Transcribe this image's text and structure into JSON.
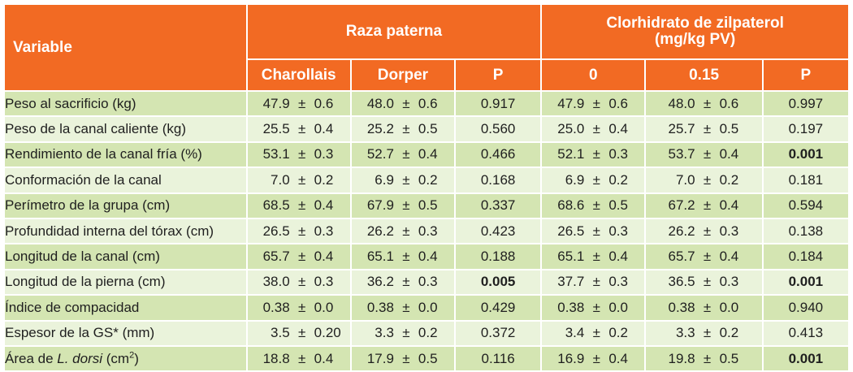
{
  "header": {
    "variable": "Variable",
    "raza_paterna": "Raza paterna",
    "zilpaterol_line1": "Clorhidrato de zilpaterol",
    "zilpaterol_line2": "(mg/kg PV)",
    "cols": [
      "Charollais",
      "Dorper",
      "P",
      "0",
      "0.15",
      "P"
    ]
  },
  "pm": "±",
  "rows": [
    {
      "label": "Peso al sacrificio (kg)",
      "cells": [
        [
          "47.9",
          "0.6"
        ],
        [
          "48.0",
          "0.6"
        ]
      ],
      "p1": "0.917",
      "zcells": [
        [
          "47.9",
          "0.6"
        ],
        [
          "48.0",
          "0.6"
        ]
      ],
      "p2": "0.997"
    },
    {
      "label": "Peso de la canal caliente (kg)",
      "cells": [
        [
          "25.5",
          "0.4"
        ],
        [
          "25.2",
          "0.5"
        ]
      ],
      "p1": "0.560",
      "zcells": [
        [
          "25.0",
          "0.4"
        ],
        [
          "25.7",
          "0.5"
        ]
      ],
      "p2": "0.197"
    },
    {
      "label": "Rendimiento de la canal fría (%)",
      "cells": [
        [
          "53.1",
          "0.3"
        ],
        [
          "52.7",
          "0.4"
        ]
      ],
      "p1": "0.466",
      "zcells": [
        [
          "52.1",
          "0.3"
        ],
        [
          "53.7",
          "0.4"
        ]
      ],
      "p2": "0.001"
    },
    {
      "label": "Conformación de la canal",
      "cells": [
        [
          "7.0",
          "0.2"
        ],
        [
          "6.9",
          "0.2"
        ]
      ],
      "p1": "0.168",
      "zcells": [
        [
          "6.9",
          "0.2"
        ],
        [
          "7.0",
          "0.2"
        ]
      ],
      "p2": "0.181"
    },
    {
      "label": "Perímetro de la grupa (cm)",
      "cells": [
        [
          "68.5",
          "0.4"
        ],
        [
          "67.9",
          "0.5"
        ]
      ],
      "p1": "0.337",
      "zcells": [
        [
          "68.6",
          "0.5"
        ],
        [
          "67.2",
          "0.4"
        ]
      ],
      "p2": "0.594"
    },
    {
      "label": "Profundidad interna del tórax (cm)",
      "cells": [
        [
          "26.5",
          "0.3"
        ],
        [
          "26.2",
          "0.3"
        ]
      ],
      "p1": "0.423",
      "zcells": [
        [
          "26.5",
          "0.3"
        ],
        [
          "26.2",
          "0.3"
        ]
      ],
      "p2": "0.138"
    },
    {
      "label": "Longitud de la canal (cm)",
      "cells": [
        [
          "65.7",
          "0.4"
        ],
        [
          "65.1",
          "0.4"
        ]
      ],
      "p1": "0.188",
      "zcells": [
        [
          "65.1",
          "0.4"
        ],
        [
          "65.7",
          "0.4"
        ]
      ],
      "p2": "0.184"
    },
    {
      "label": "Longitud de la pierna (cm)",
      "cells": [
        [
          "38.0",
          "0.3"
        ],
        [
          "36.2",
          "0.3"
        ]
      ],
      "p1": "0.005",
      "zcells": [
        [
          "37.7",
          "0.3"
        ],
        [
          "36.5",
          "0.3"
        ]
      ],
      "p2": "0.001"
    },
    {
      "label": "Índice de compacidad",
      "cells": [
        [
          "0.38",
          "0.0"
        ],
        [
          "0.38",
          "0.0"
        ]
      ],
      "p1": "0.429",
      "zcells": [
        [
          "0.38",
          "0.0"
        ],
        [
          "0.38",
          "0.0"
        ]
      ],
      "p2": "0.940"
    },
    {
      "label": "Espesor de la GS* (mm)",
      "cells": [
        [
          "3.5",
          "0.20"
        ],
        [
          "3.3",
          "0.2"
        ]
      ],
      "p1": "0.372",
      "zcells": [
        [
          "3.4",
          "0.2"
        ],
        [
          "3.3",
          "0.2"
        ]
      ],
      "p2": "0.413"
    },
    {
      "label_pre": "Área de ",
      "label_it": "L. dorsi",
      "label_post": " (cm",
      "label_sup": "2",
      "label_end": ")",
      "cells": [
        [
          "18.8",
          "0.4"
        ],
        [
          "17.9",
          "0.5"
        ]
      ],
      "p1": "0.116",
      "zcells": [
        [
          "16.9",
          "0.4"
        ],
        [
          "19.8",
          "0.5"
        ]
      ],
      "p2": "0.001"
    }
  ],
  "significant": [
    "0.001",
    "0.005"
  ],
  "colors": {
    "header_bg": "#f26a23",
    "row_dark": "#d4e5b2",
    "row_light": "#eaf3db"
  }
}
